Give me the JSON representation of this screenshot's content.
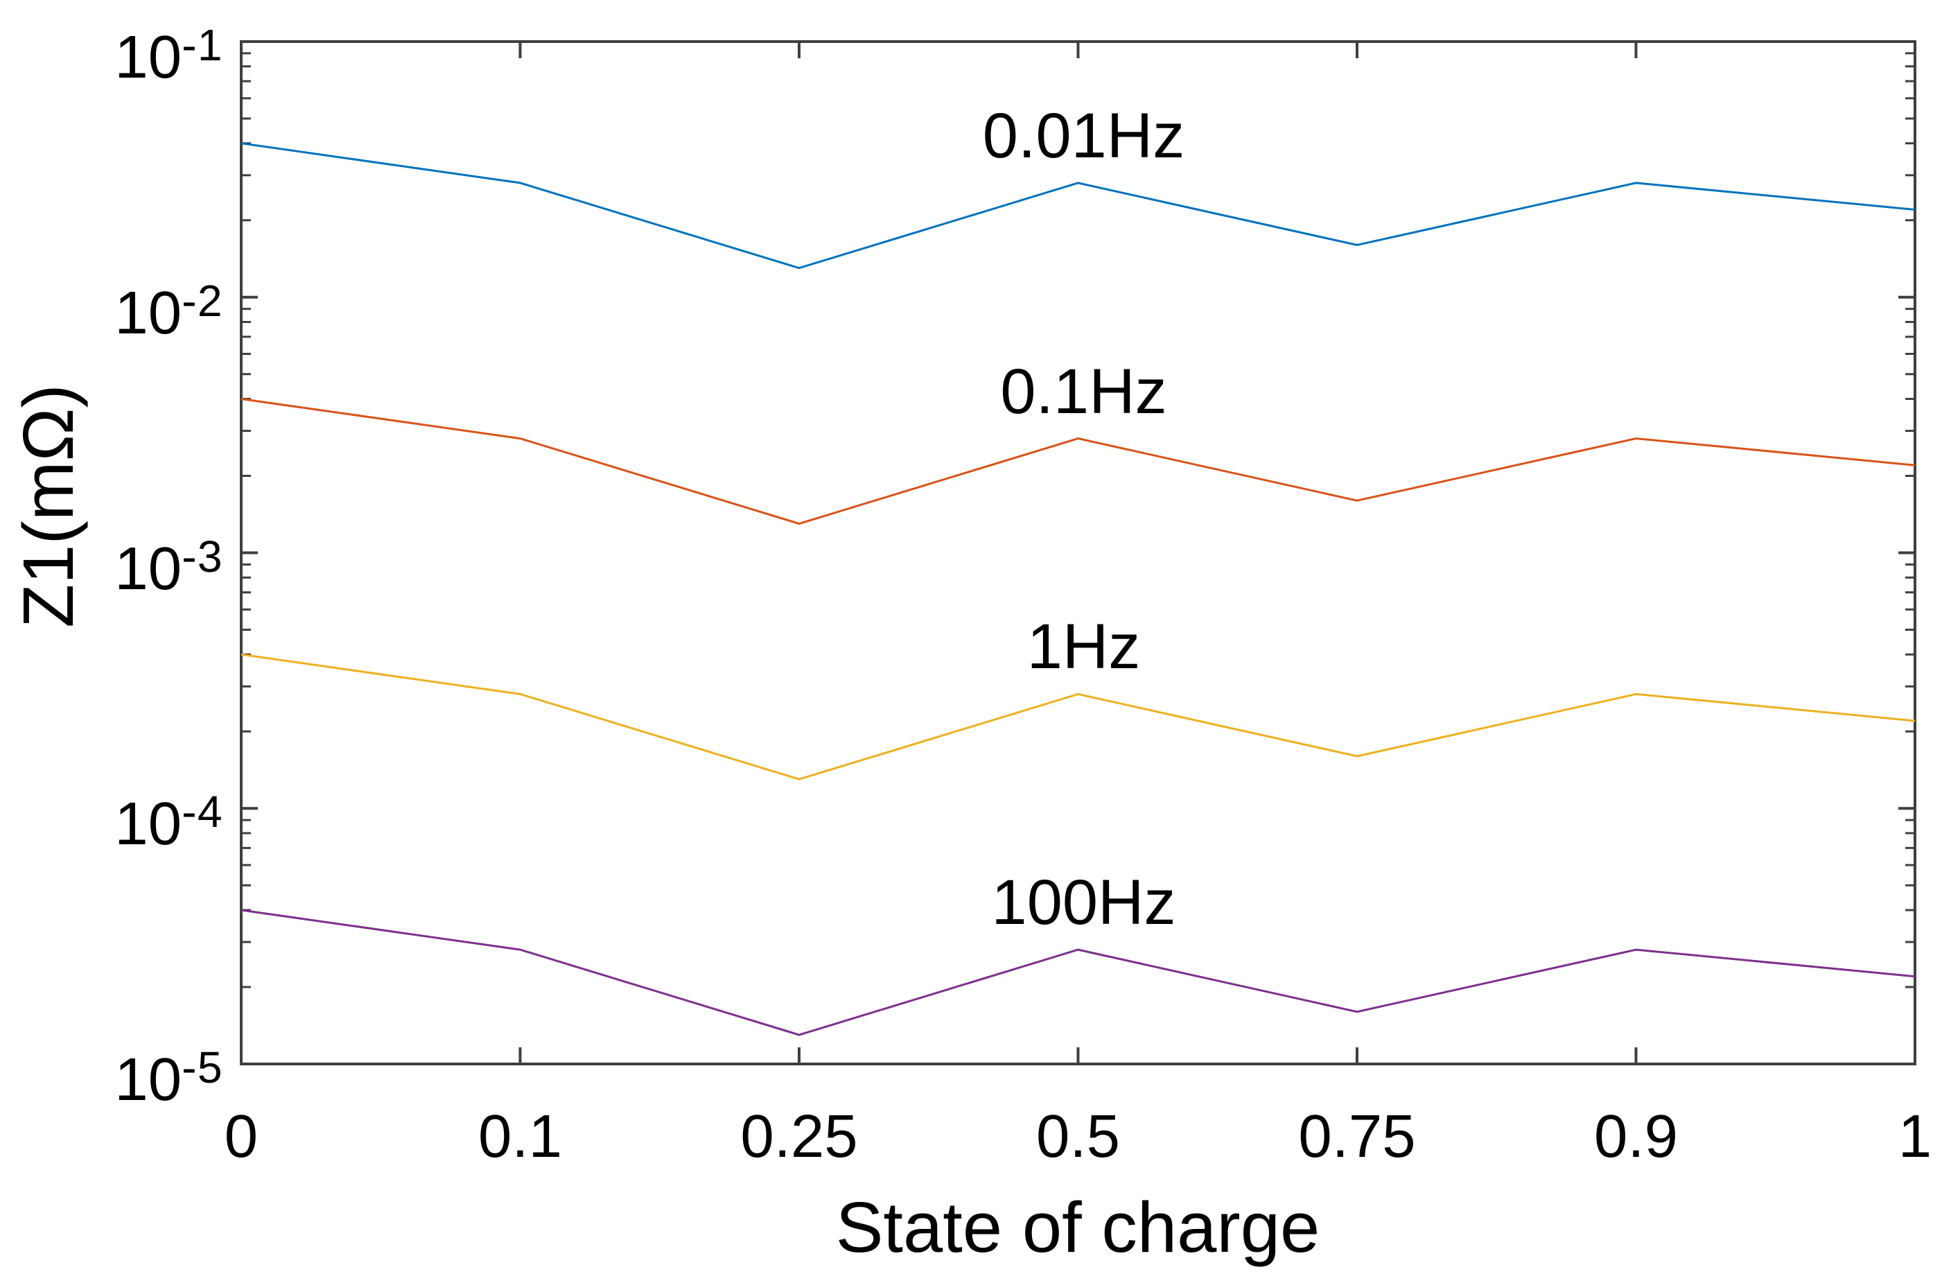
{
  "chart_data": {
    "type": "line",
    "title": "",
    "xlabel": "State of charge",
    "ylabel": "Z1(mΩ)",
    "x_tick_labels": [
      "0",
      "0.1",
      "0.25",
      "0.5",
      "0.75",
      "0.9",
      "1"
    ],
    "x_values": [
      0,
      0.1,
      0.25,
      0.5,
      0.75,
      0.9,
      1
    ],
    "x_spacing": "equal",
    "y_scale": "log",
    "ylim": [
      1e-05,
      0.1
    ],
    "y_tick_base": "10",
    "y_tick_exponents": [
      -1,
      -2,
      -3,
      -4,
      -5
    ],
    "grid": false,
    "legend_position": "inline-annotations",
    "axis_color": "#3f3f3f",
    "text_color": "#000000",
    "series": [
      {
        "name": "0.01Hz",
        "color": "#0072BD",
        "values": [
          0.04,
          0.028,
          0.013,
          0.028,
          0.016,
          0.028,
          0.022
        ]
      },
      {
        "name": "0.1Hz",
        "color": "#D95319",
        "values": [
          0.004,
          0.0028,
          0.0013,
          0.0028,
          0.0016,
          0.0028,
          0.0022
        ]
      },
      {
        "name": "1Hz",
        "color": "#EDB120",
        "values": [
          0.0004,
          0.00028,
          0.00013,
          0.00028,
          0.00016,
          0.00028,
          0.00022
        ]
      },
      {
        "name": "100Hz",
        "color": "#7E2F8E",
        "values": [
          4e-05,
          2.8e-05,
          1.3e-05,
          2.8e-05,
          1.6e-05,
          2.8e-05,
          2.2e-05
        ]
      }
    ]
  }
}
